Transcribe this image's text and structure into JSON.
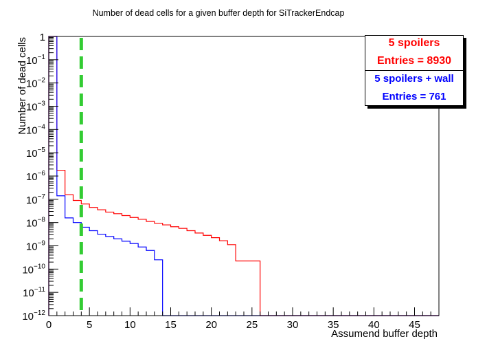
{
  "chart_data": {
    "type": "step-histogram",
    "title": "Number of dead cells for a given buffer depth for SiTrackerEndcap",
    "xlabel": "Assumend buffer depth",
    "ylabel": "Number of dead cells",
    "xlim": [
      0,
      48
    ],
    "ylim_exp": [
      -12,
      0
    ],
    "y_scale": "log",
    "grid": false,
    "x_ticks": [
      0,
      5,
      10,
      15,
      20,
      25,
      30,
      35,
      40,
      45
    ],
    "x_tick_labels": [
      "0",
      "5",
      "10",
      "15",
      "20",
      "25",
      "30",
      "35",
      "40",
      "45"
    ],
    "y_ticks": [
      {
        "exp": 0,
        "base": "1",
        "sup": ""
      },
      {
        "exp": -1,
        "base": "10",
        "sup": "−1"
      },
      {
        "exp": -2,
        "base": "10",
        "sup": "−2"
      },
      {
        "exp": -3,
        "base": "10",
        "sup": "−3"
      },
      {
        "exp": -4,
        "base": "10",
        "sup": "−4"
      },
      {
        "exp": -5,
        "base": "10",
        "sup": "−5"
      },
      {
        "exp": -6,
        "base": "10",
        "sup": "−6"
      },
      {
        "exp": -7,
        "base": "10",
        "sup": "−7"
      },
      {
        "exp": -8,
        "base": "10",
        "sup": "−8"
      },
      {
        "exp": -9,
        "base": "10",
        "sup": "−9"
      },
      {
        "exp": -10,
        "base": "10",
        "sup": "−10"
      },
      {
        "exp": -11,
        "base": "10",
        "sup": "−11"
      },
      {
        "exp": -12,
        "base": "10",
        "sup": "−12"
      }
    ],
    "vertical_line": {
      "x": 4,
      "color": "#33cc33",
      "style": "dashed"
    },
    "series": [
      {
        "name": "5 spoilers",
        "entries_label": "Entries = 8930",
        "color": "#ff0000",
        "bin_width": 1,
        "x_start": 0,
        "log10_values": [
          0,
          -5.75,
          -6.8,
          -7.05,
          -7.2,
          -7.35,
          -7.45,
          -7.55,
          -7.62,
          -7.7,
          -7.78,
          -7.86,
          -7.95,
          -8.03,
          -8.1,
          -8.18,
          -8.25,
          -8.35,
          -8.45,
          -8.55,
          -8.65,
          -8.78,
          -8.95,
          -9.65,
          -9.65,
          -9.65
        ]
      },
      {
        "name": "5 spoilers + wall",
        "entries_label": "Entries = 761",
        "color": "#0000ff",
        "bin_width": 1,
        "x_start": 0,
        "log10_values": [
          0,
          -6.85,
          -7.8,
          -8.0,
          -8.2,
          -8.35,
          -8.5,
          -8.6,
          -8.7,
          -8.8,
          -8.9,
          -9.05,
          -9.2,
          -9.6
        ]
      }
    ]
  }
}
